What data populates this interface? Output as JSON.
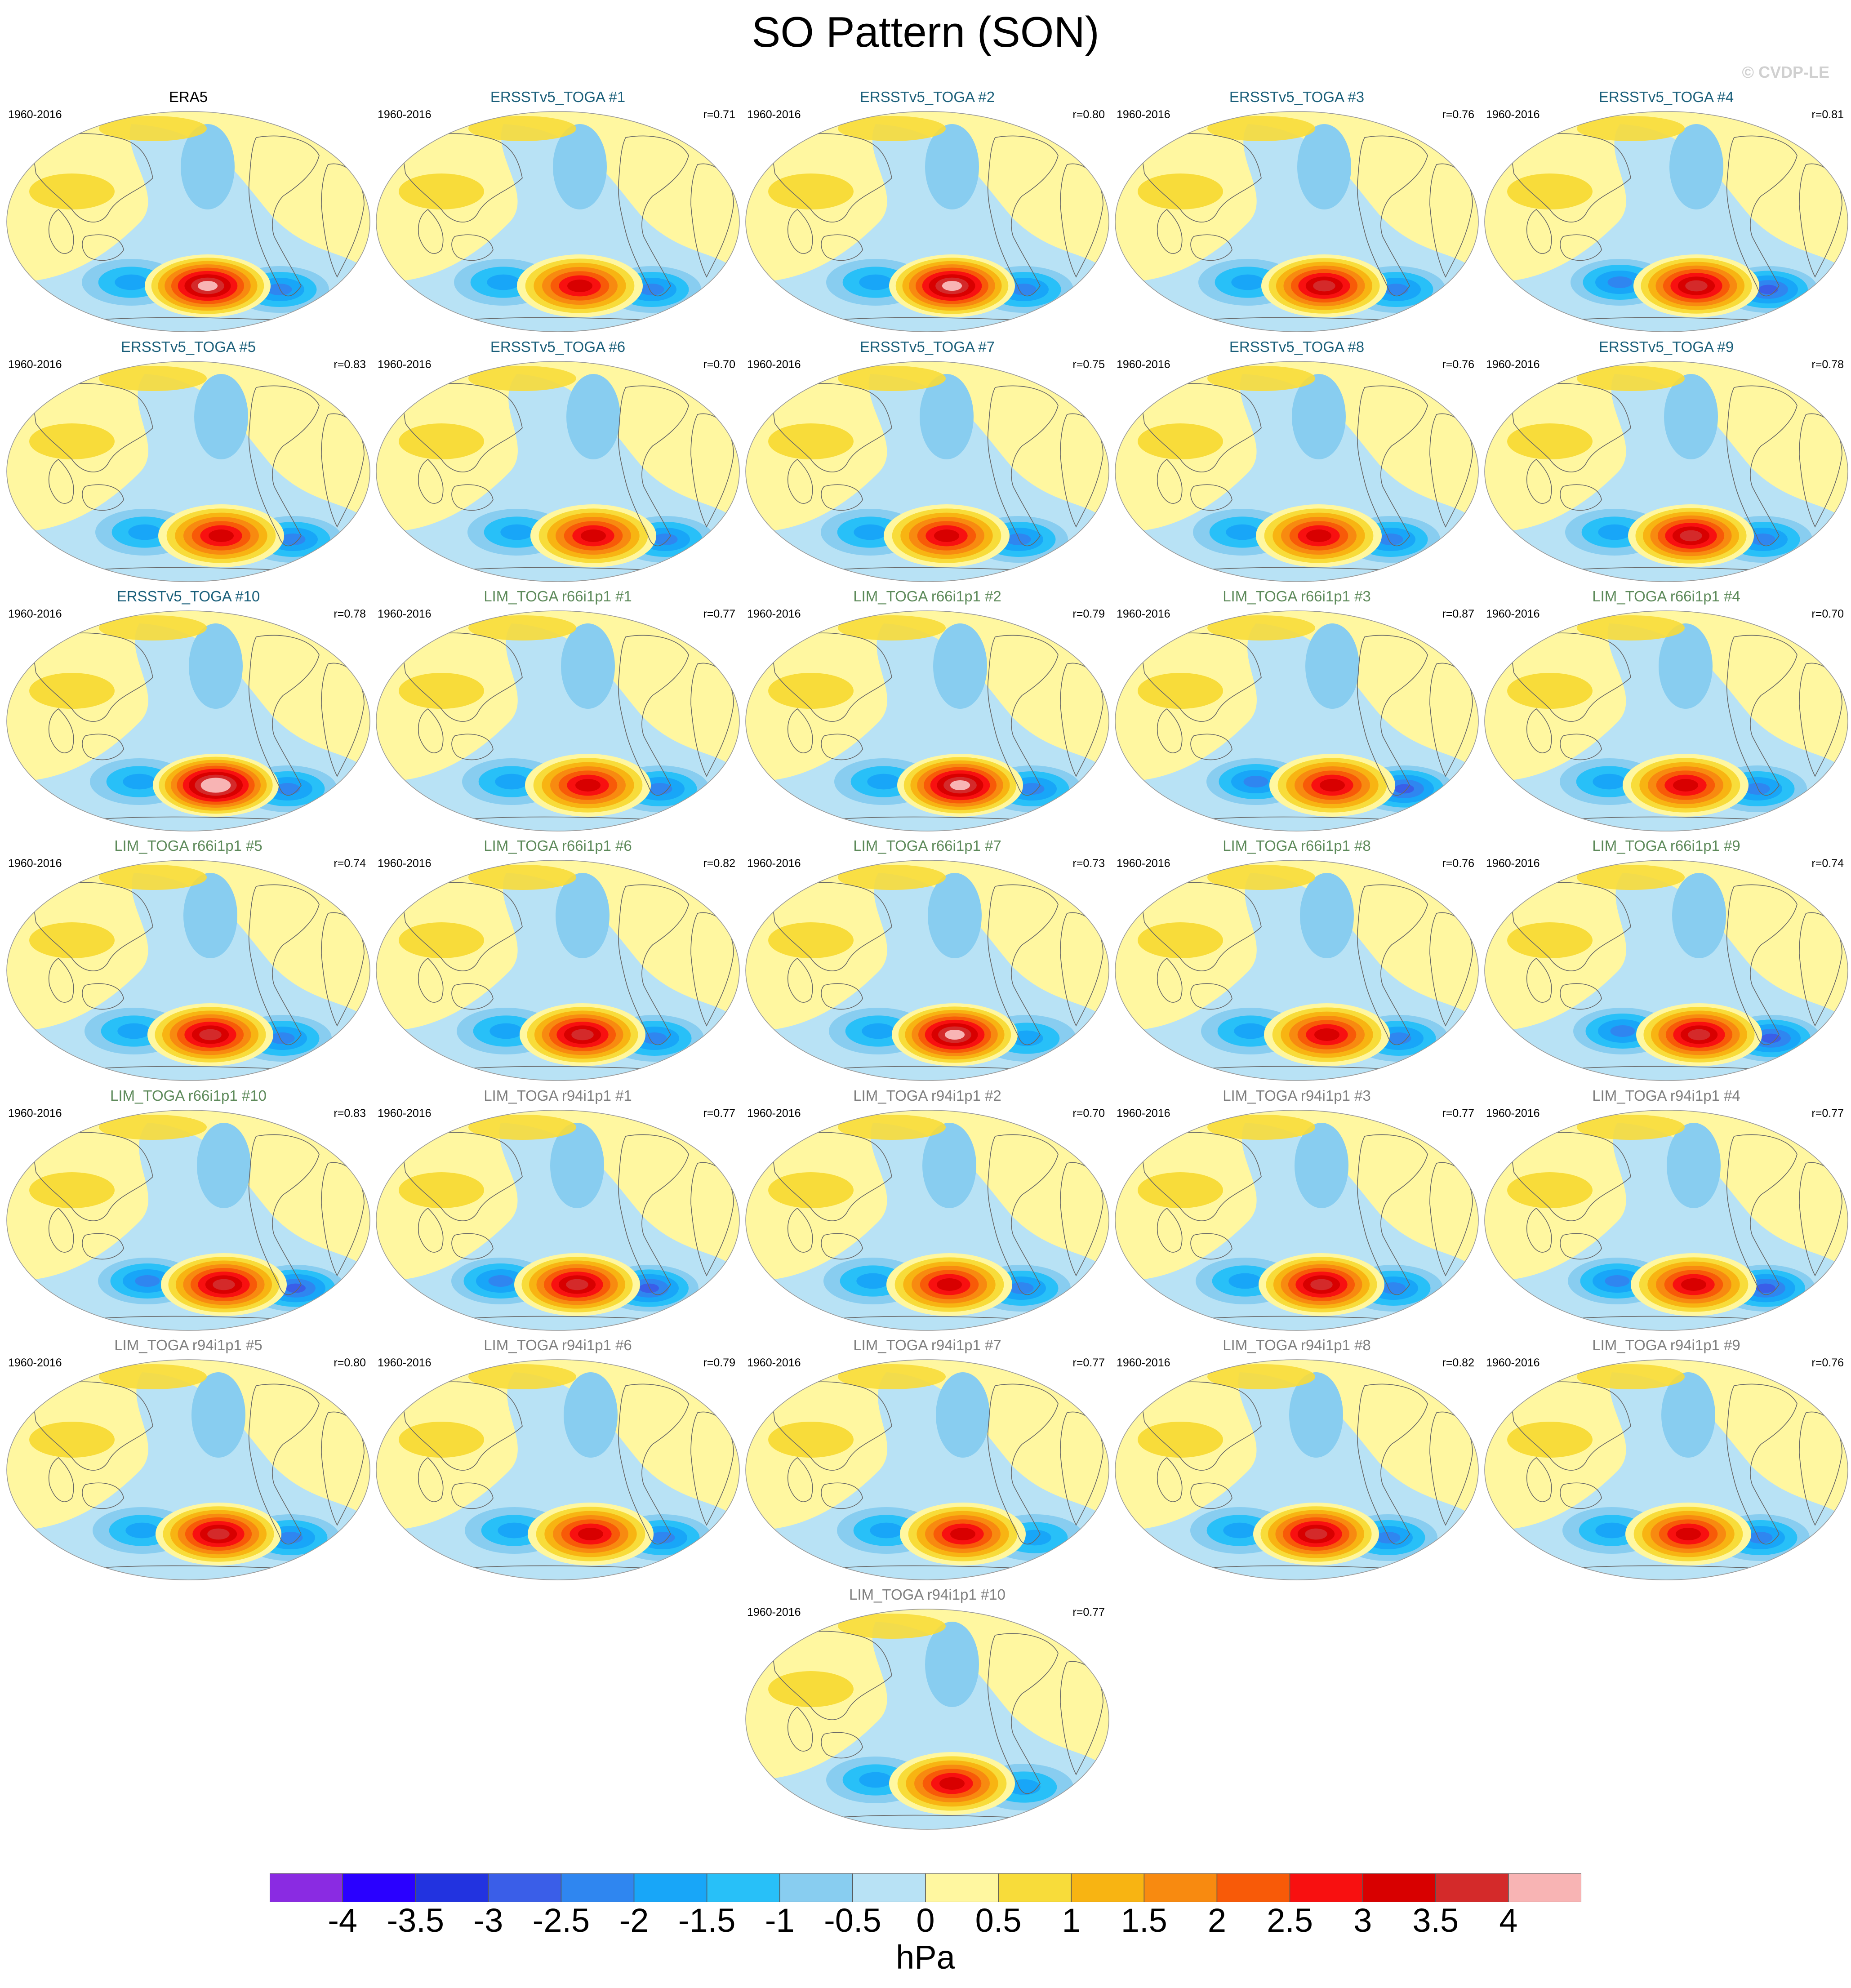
{
  "title": "SO Pattern (SON)",
  "copyright": "© CVDP-LE",
  "period": "1960-2016",
  "units": "hPa",
  "colors": {
    "ocean_land_zero": "#fff7a0",
    "coastline": "#666666"
  },
  "colorbar": {
    "labels": [
      "-4",
      "-3.5",
      "-3",
      "-2.5",
      "-2",
      "-1.5",
      "-1",
      "-0.5",
      "0",
      "0.5",
      "1",
      "1.5",
      "2",
      "2.5",
      "3",
      "3.5",
      "4"
    ],
    "colors": [
      "#8a2be2",
      "#2a00ff",
      "#2233e0",
      "#3a5ee8",
      "#2f86f0",
      "#18a6f8",
      "#28c0f8",
      "#88cdf0",
      "#b8e2f5",
      "#fff7a0",
      "#f8dc3a",
      "#f8b412",
      "#f88a10",
      "#f85a08",
      "#f81010",
      "#d80000",
      "#d42a2a",
      "#f8b4b4"
    ]
  },
  "panels": [
    {
      "name": "ERA5",
      "r": "",
      "group": "obs",
      "high": 1.0,
      "low": 0.55
    },
    {
      "name": "ERSSTv5_TOGA #1",
      "r": "r=0.71",
      "group": "erss",
      "high": 0.7,
      "low": 0.55
    },
    {
      "name": "ERSSTv5_TOGA #2",
      "r": "r=0.80",
      "group": "erss",
      "high": 0.95,
      "low": 0.55
    },
    {
      "name": "ERSSTv5_TOGA #3",
      "r": "r=0.76",
      "group": "erss",
      "high": 0.9,
      "low": 0.5
    },
    {
      "name": "ERSSTv5_TOGA #4",
      "r": "r=0.81",
      "group": "erss",
      "high": 0.85,
      "low": 0.6
    },
    {
      "name": "ERSSTv5_TOGA #5",
      "r": "r=0.83",
      "group": "erss",
      "high": 0.8,
      "low": 0.55
    },
    {
      "name": "ERSSTv5_TOGA #6",
      "r": "r=0.70",
      "group": "erss",
      "high": 0.75,
      "low": 0.55
    },
    {
      "name": "ERSSTv5_TOGA #7",
      "r": "r=0.75",
      "group": "erss",
      "high": 0.8,
      "low": 0.45
    },
    {
      "name": "ERSSTv5_TOGA #8",
      "r": "r=0.76",
      "group": "erss",
      "high": 0.75,
      "low": 0.55
    },
    {
      "name": "ERSSTv5_TOGA #9",
      "r": "r=0.78",
      "group": "erss",
      "high": 0.85,
      "low": 0.55
    },
    {
      "name": "ERSSTv5_TOGA #10",
      "r": "r=0.78",
      "group": "erss",
      "high": 1.1,
      "low": 0.55
    },
    {
      "name": "LIM_TOGA r66i1p1 #1",
      "r": "r=0.77",
      "group": "r66",
      "high": 0.8,
      "low": 0.5
    },
    {
      "name": "LIM_TOGA r66i1p1 #2",
      "r": "r=0.79",
      "group": "r66",
      "high": 0.95,
      "low": 0.5
    },
    {
      "name": "LIM_TOGA r66i1p1 #3",
      "r": "r=0.87",
      "group": "r66",
      "high": 0.8,
      "low": 0.6
    },
    {
      "name": "LIM_TOGA r66i1p1 #4",
      "r": "r=0.70",
      "group": "r66",
      "high": 0.75,
      "low": 0.55
    },
    {
      "name": "LIM_TOGA r66i1p1 #5",
      "r": "r=0.74",
      "group": "r66",
      "high": 0.85,
      "low": 0.55
    },
    {
      "name": "LIM_TOGA r66i1p1 #6",
      "r": "r=0.82",
      "group": "r66",
      "high": 0.85,
      "low": 0.5
    },
    {
      "name": "LIM_TOGA r66i1p1 #7",
      "r": "r=0.73",
      "group": "r66",
      "high": 0.95,
      "low": 0.4
    },
    {
      "name": "LIM_TOGA r66i1p1 #8",
      "r": "r=0.76",
      "group": "r66",
      "high": 0.8,
      "low": 0.55
    },
    {
      "name": "LIM_TOGA r66i1p1 #9",
      "r": "r=0.74",
      "group": "r66",
      "high": 0.9,
      "low": 0.6
    },
    {
      "name": "LIM_TOGA r66i1p1 #10",
      "r": "r=0.83",
      "group": "r66",
      "high": 0.9,
      "low": 0.65
    },
    {
      "name": "LIM_TOGA r94i1p1 #1",
      "r": "r=0.77",
      "group": "r94",
      "high": 0.9,
      "low": 0.6
    },
    {
      "name": "LIM_TOGA r94i1p1 #2",
      "r": "r=0.70",
      "group": "r94",
      "high": 0.75,
      "low": 0.45
    },
    {
      "name": "LIM_TOGA r94i1p1 #3",
      "r": "r=0.77",
      "group": "r94",
      "high": 0.9,
      "low": 0.45
    },
    {
      "name": "LIM_TOGA r94i1p1 #4",
      "r": "r=0.77",
      "group": "r94",
      "high": 0.8,
      "low": 0.6
    },
    {
      "name": "LIM_TOGA r94i1p1 #5",
      "r": "r=0.80",
      "group": "r94",
      "high": 0.85,
      "low": 0.5
    },
    {
      "name": "LIM_TOGA r94i1p1 #6",
      "r": "r=0.79",
      "group": "r94",
      "high": 0.75,
      "low": 0.5
    },
    {
      "name": "LIM_TOGA r94i1p1 #7",
      "r": "r=0.77",
      "group": "r94",
      "high": 0.8,
      "low": 0.4
    },
    {
      "name": "LIM_TOGA r94i1p1 #8",
      "r": "r=0.82",
      "group": "r94",
      "high": 0.9,
      "low": 0.45
    },
    {
      "name": "LIM_TOGA r94i1p1 #9",
      "r": "r=0.76",
      "group": "r94",
      "high": 0.75,
      "low": 0.45
    },
    {
      "name": "LIM_TOGA r94i1p1 #10",
      "r": "r=0.77",
      "group": "r94",
      "high": 0.75,
      "low": 0.4
    }
  ]
}
